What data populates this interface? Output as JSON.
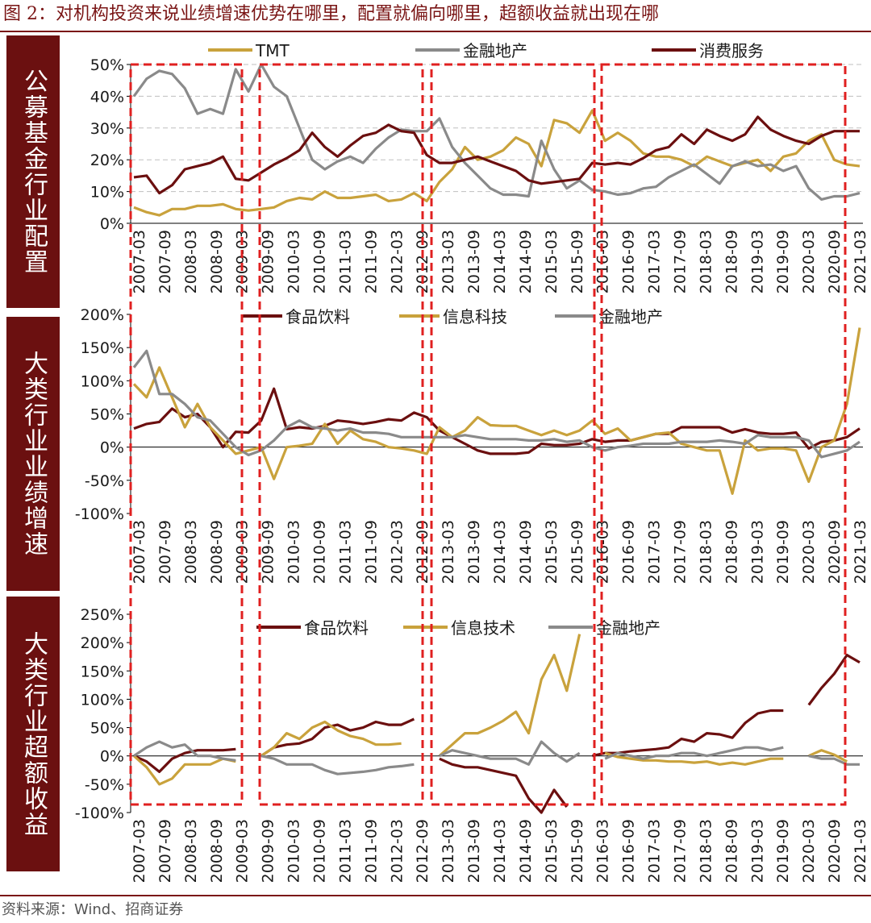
{
  "title": "图 2：对机构投资来说业绩增速优势在哪里，配置就偏向哪里，超额收益就出现在哪",
  "source": "资料来源：Wind、招商证券",
  "colors": {
    "food": "#6b0f0f",
    "tech": "#c9a23c",
    "fin": "#8a8a8a",
    "frame": "#e02020",
    "label_bg": "#6b1010"
  },
  "x_ticks": [
    "2007-03",
    "2007-09",
    "2008-03",
    "2008-09",
    "2009-03",
    "2009-09",
    "2010-03",
    "2010-09",
    "2011-03",
    "2011-09",
    "2012-03",
    "2012-09",
    "2013-03",
    "2013-09",
    "2014-03",
    "2014-09",
    "2015-03",
    "2015-09",
    "2016-03",
    "2016-09",
    "2017-03",
    "2017-09",
    "2018-03",
    "2018-09",
    "2019-03",
    "2019-09",
    "2020-03",
    "2020-09",
    "2021-03"
  ],
  "chart_data": [
    {
      "type": "line",
      "row_label": "公募基金行业配置",
      "y_ticks": [
        "50%",
        "40%",
        "30%",
        "20%",
        "10%",
        "0%"
      ],
      "ylim": [
        0,
        50
      ],
      "grid": true,
      "legend": "top",
      "series": [
        {
          "name": "TMT",
          "color_key": "tech",
          "values": [
            5,
            3.5,
            2.5,
            4.5,
            4.5,
            5.5,
            5.5,
            6,
            4.5,
            4,
            4.5,
            5,
            7,
            8,
            7.5,
            10,
            8,
            8,
            8.5,
            9,
            7,
            7.5,
            9.5,
            7,
            13,
            17,
            24,
            20,
            21,
            23,
            27,
            25,
            18,
            32.5,
            31.5,
            28.5,
            35.5,
            26,
            28.5,
            26,
            22,
            21,
            21,
            20,
            18,
            21,
            19.5,
            18,
            19,
            20,
            16.5,
            21,
            22,
            26,
            28,
            20,
            18.5,
            18
          ]
        },
        {
          "name": "金融地产",
          "color_key": "fin",
          "values": [
            40,
            45.5,
            48,
            47,
            42.5,
            34.5,
            36,
            34.5,
            48.5,
            41.5,
            50,
            43,
            40,
            30,
            20,
            17,
            19.5,
            21,
            19,
            23.5,
            27,
            29.5,
            29,
            29,
            33,
            24,
            19,
            15,
            11,
            9,
            9,
            8.5,
            26,
            17,
            11,
            13.5,
            10.5,
            10,
            9,
            9.5,
            11,
            11.5,
            14.5,
            16.5,
            18.5,
            15.5,
            12.5,
            18,
            19.5,
            18,
            18.5,
            16.5,
            18,
            11,
            7.5,
            8.5,
            8.5,
            9.5
          ]
        },
        {
          "name": "消费服务",
          "color_key": "food",
          "values": [
            14.5,
            15,
            9.5,
            12,
            17,
            18,
            19,
            21,
            14,
            13.5,
            16,
            18.5,
            20.5,
            23,
            28.5,
            24,
            21,
            24.5,
            27.5,
            28.5,
            31,
            29,
            28.5,
            21.5,
            19,
            19,
            20,
            21,
            19.5,
            18,
            16.5,
            13.5,
            12.5,
            13,
            13.5,
            14,
            19,
            18.5,
            19,
            18.5,
            20.5,
            23,
            24,
            28,
            25,
            29.5,
            27.5,
            26,
            28,
            33.5,
            29.5,
            27.5,
            26,
            25,
            27.5,
            29,
            29,
            29
          ]
        }
      ]
    },
    {
      "type": "line",
      "row_label": "大类行业业绩增速",
      "y_ticks": [
        "200%",
        "150%",
        "100%",
        "50%",
        "0%",
        "-50%",
        "-100%"
      ],
      "ylim": [
        -100,
        200
      ],
      "grid": false,
      "legend": "top",
      "series": [
        {
          "name": "食品饮料",
          "color_key": "food",
          "values": [
            28,
            35,
            38,
            58,
            45,
            50,
            30,
            0,
            23,
            22,
            40,
            88,
            27,
            30,
            28,
            32,
            40,
            38,
            35,
            38,
            42,
            40,
            52,
            45,
            25,
            15,
            5,
            -5,
            -10,
            -10,
            -10,
            -8,
            5,
            3,
            3,
            5,
            12,
            8,
            10,
            10,
            15,
            20,
            20,
            30,
            30,
            30,
            30,
            22,
            27,
            22,
            20,
            20,
            22,
            -2,
            8,
            10,
            15,
            28
          ]
        },
        {
          "name": "信息科技",
          "color_key": "tech",
          "values": [
            95,
            75,
            120,
            75,
            30,
            65,
            30,
            10,
            -10,
            -5,
            0,
            -48,
            0,
            2,
            5,
            35,
            5,
            25,
            12,
            8,
            0,
            -2,
            -5,
            -10,
            30,
            15,
            25,
            45,
            33,
            32,
            32,
            25,
            18,
            25,
            18,
            25,
            40,
            20,
            28,
            10,
            15,
            20,
            22,
            5,
            0,
            -5,
            -5,
            -70,
            10,
            -5,
            -2,
            -2,
            -5,
            -52,
            0,
            10,
            65,
            180
          ]
        },
        {
          "name": "金融地产",
          "color_key": "fin",
          "values": [
            120,
            145,
            80,
            80,
            65,
            45,
            40,
            20,
            0,
            -12,
            -5,
            10,
            30,
            40,
            30,
            28,
            25,
            28,
            22,
            22,
            20,
            15,
            15,
            15,
            15,
            15,
            18,
            15,
            12,
            12,
            12,
            10,
            10,
            12,
            8,
            10,
            0,
            -5,
            0,
            2,
            5,
            5,
            5,
            8,
            8,
            8,
            10,
            8,
            5,
            18,
            15,
            15,
            15,
            10,
            -15,
            -10,
            -5,
            8
          ]
        }
      ]
    },
    {
      "type": "line",
      "row_label": "大类行业超额收益",
      "y_ticks": [
        "250%",
        "200%",
        "150%",
        "100%",
        "50%",
        "0%",
        "-50%",
        "-100%"
      ],
      "ylim": [
        -100,
        250
      ],
      "grid": false,
      "legend": "top",
      "series": [
        {
          "name": "食品饮料",
          "color_key": "food",
          "values": [
            0,
            -10,
            -28,
            -5,
            5,
            10,
            10,
            10,
            12,
            null,
            0,
            15,
            20,
            22,
            30,
            50,
            55,
            45,
            50,
            60,
            55,
            55,
            65,
            null,
            -5,
            -15,
            -20,
            -20,
            -25,
            -30,
            -35,
            -75,
            -100,
            -60,
            -90,
            null,
            0,
            5,
            5,
            8,
            10,
            12,
            15,
            30,
            25,
            40,
            38,
            32,
            58,
            75,
            80,
            80,
            null,
            90,
            120,
            145,
            178,
            165
          ]
        },
        {
          "name": "信息技术",
          "color_key": "tech",
          "values": [
            0,
            -20,
            -50,
            -40,
            -15,
            -15,
            -15,
            -5,
            -10,
            null,
            0,
            15,
            40,
            30,
            50,
            60,
            45,
            35,
            30,
            20,
            20,
            22,
            null,
            null,
            0,
            20,
            40,
            40,
            50,
            62,
            78,
            40,
            135,
            178,
            115,
            215,
            null,
            5,
            -2,
            -5,
            -8,
            -8,
            -10,
            -10,
            -12,
            -10,
            -15,
            -12,
            -15,
            -10,
            -5,
            -5,
            null,
            0,
            10,
            2,
            -10,
            null
          ]
        },
        {
          "name": "金融地产",
          "color_key": "fin",
          "values": [
            0,
            15,
            25,
            15,
            20,
            0,
            0,
            -5,
            -8,
            null,
            0,
            -5,
            -15,
            -15,
            -15,
            -25,
            -32,
            -30,
            -28,
            -25,
            -20,
            -18,
            -15,
            null,
            0,
            10,
            5,
            0,
            -5,
            -5,
            -5,
            -15,
            25,
            5,
            -10,
            5,
            null,
            -5,
            5,
            0,
            -5,
            0,
            0,
            5,
            5,
            0,
            5,
            10,
            15,
            15,
            10,
            15,
            null,
            0,
            -5,
            -5,
            -15,
            -15
          ]
        }
      ]
    }
  ],
  "highlight_periods": [
    "2007-03 ~ 2009-03",
    "2009-03 ~ 2012-09",
    "2012-09 ~ 2016-03",
    "2016-03 ~ 2021-03"
  ]
}
